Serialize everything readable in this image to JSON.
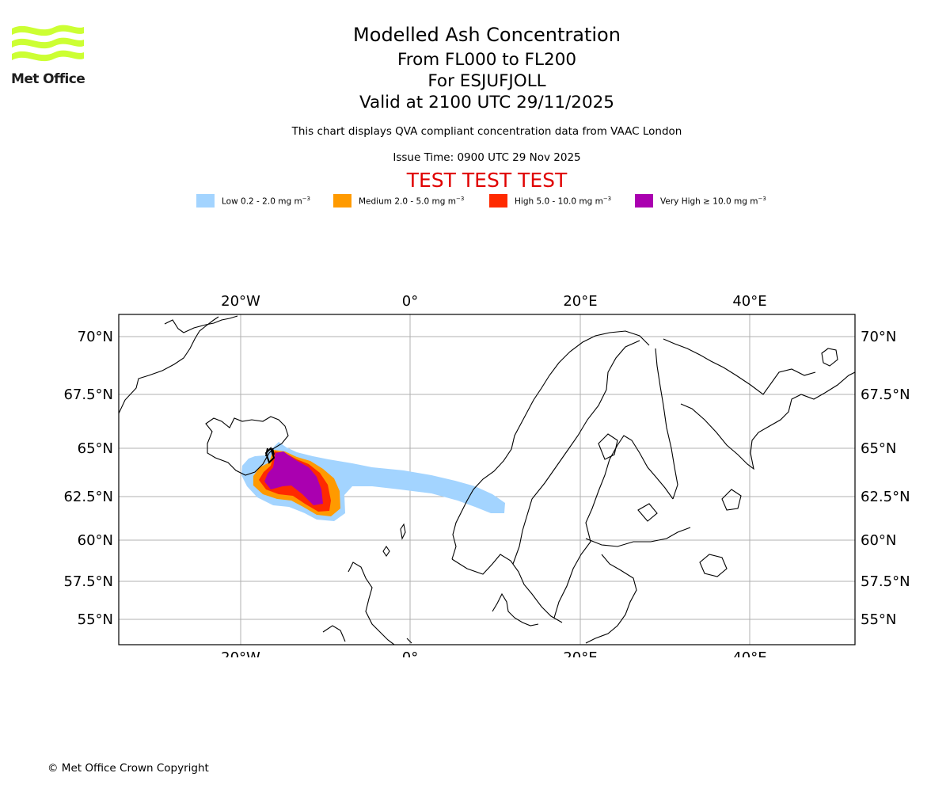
{
  "logo": {
    "name": "Met Office",
    "accent": "#ccff33"
  },
  "header": {
    "title": "Modelled Ash Concentration",
    "levels": "From FL000 to FL200",
    "volcano": "For ESJUFJOLL",
    "valid": "Valid at 2100 UTC 29/11/2025",
    "note": "This chart displays QVA compliant concentration data from VAAC London",
    "issue": "Issue Time: 0900 UTC 29 Nov 2025",
    "test_banner": "TEST TEST TEST"
  },
  "legend": [
    {
      "label": "Low 0.2 - 2.0 mg m",
      "exp": "−3",
      "color": "#a3d4ff"
    },
    {
      "label": "Medium 2.0 - 5.0 mg m",
      "exp": "−3",
      "color": "#ff9a00"
    },
    {
      "label": "High 5.0 - 10.0 mg m",
      "exp": "−3",
      "color": "#ff2a00"
    },
    {
      "label": "Very High  ≥  10.0 mg m",
      "exp": "−3",
      "color": "#aa00b0"
    }
  ],
  "map": {
    "lon_labels": [
      "20°W",
      "0°",
      "20°E",
      "40°E"
    ],
    "lat_labels": [
      "70°N",
      "67.5°N",
      "65°N",
      "62.5°N",
      "60°N",
      "57.5°N",
      "55°N"
    ],
    "extent": {
      "lon_min": -34.3,
      "lon_max": 52.5,
      "lat_min": 54.0,
      "lat_max": 71.1
    },
    "grid_color": "#b0b0b0"
  },
  "footer": {
    "copyright": "© Met Office Crown Copyright"
  }
}
